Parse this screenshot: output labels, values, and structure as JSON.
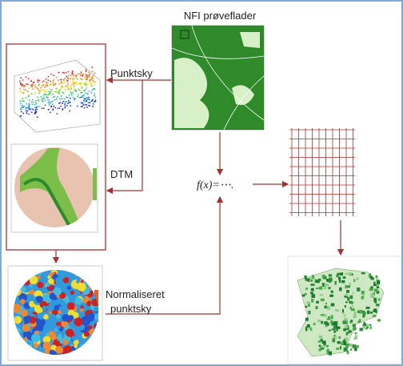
{
  "title": "NFI prøveflader",
  "labels": {
    "point_cloud": "Punktsky",
    "dtm": "DTM",
    "function": "f(x)=⋯.",
    "normalized": [
      "Normaliseret",
      "punktsky"
    ]
  }
}
